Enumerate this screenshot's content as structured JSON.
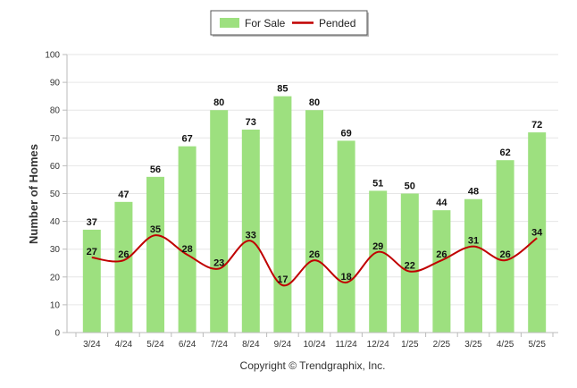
{
  "chart_data": {
    "type": "bar",
    "categories": [
      "3/24",
      "4/24",
      "5/24",
      "6/24",
      "7/24",
      "8/24",
      "9/24",
      "10/24",
      "11/24",
      "12/24",
      "1/25",
      "2/25",
      "3/25",
      "4/25",
      "5/25"
    ],
    "series": [
      {
        "name": "For Sale",
        "kind": "bar",
        "color": "#9de07f",
        "values": [
          37,
          47,
          56,
          67,
          80,
          73,
          85,
          80,
          69,
          51,
          50,
          44,
          48,
          62,
          72
        ]
      },
      {
        "name": "Pended",
        "kind": "line",
        "color": "#c00000",
        "values": [
          27,
          26,
          35,
          28,
          23,
          33,
          17,
          26,
          18,
          29,
          22,
          26,
          31,
          26,
          34
        ]
      }
    ],
    "ylabel": "Number of Homes",
    "xlabel": "",
    "ylim": [
      0,
      100
    ],
    "yticks": [
      0,
      10,
      20,
      30,
      40,
      50,
      60,
      70,
      80,
      90,
      100
    ],
    "grid": true,
    "legend_position": "top-center"
  },
  "footer": {
    "copyright": "Copyright © Trendgraphix, Inc."
  }
}
